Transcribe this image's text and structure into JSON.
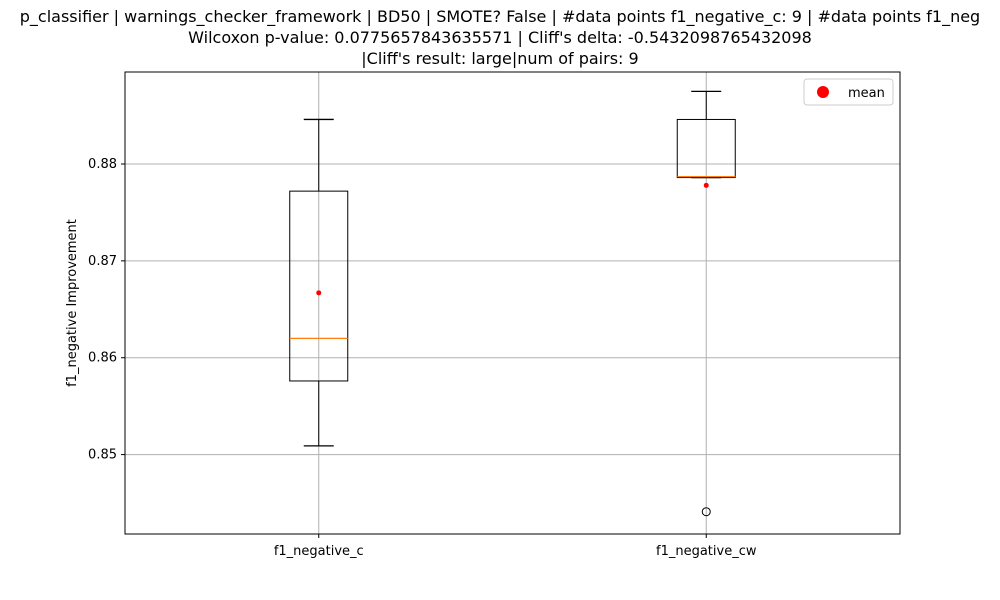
{
  "chart_data": {
    "type": "box",
    "title_lines": [
      "p_classifier | warnings_checker_framework | BD50 | SMOTE? False | #data points f1_negative_c: 9 | #data points f1_neg",
      "Wilcoxon p-value: 0.0775657843635571 | Cliff's delta: -0.5432098765432098",
      "|Cliff's result: large|num of pairs: 9"
    ],
    "xlabel": "",
    "ylabel": "f1_negative Improvement",
    "ylim": [
      0.8418,
      0.8895
    ],
    "yticks": [
      0.85,
      0.86,
      0.87,
      0.88
    ],
    "ytick_labels": [
      "0.85",
      "0.86",
      "0.87",
      "0.88"
    ],
    "grid": true,
    "legend": {
      "placement": "top-right",
      "entries": [
        {
          "label": "mean",
          "color": "#ff0000"
        }
      ]
    },
    "categories": [
      "f1_negative_c",
      "f1_negative_cw"
    ],
    "boxes": [
      {
        "name": "f1_negative_c",
        "whisker_low": 0.8509,
        "q1": 0.8576,
        "median": 0.862,
        "q3": 0.8772,
        "whisker_high": 0.8846,
        "mean": 0.8667,
        "outliers": []
      },
      {
        "name": "f1_negative_cw",
        "whisker_low": 0.8786,
        "q1": 0.8786,
        "median": 0.8787,
        "q3": 0.8846,
        "whisker_high": 0.8875,
        "mean": 0.8778,
        "outliers": [
          0.8441
        ]
      }
    ],
    "colors": {
      "box": "#000000",
      "median": "#ff7f0e",
      "mean": "#ff0000",
      "grid": "#b0b0b0"
    }
  }
}
